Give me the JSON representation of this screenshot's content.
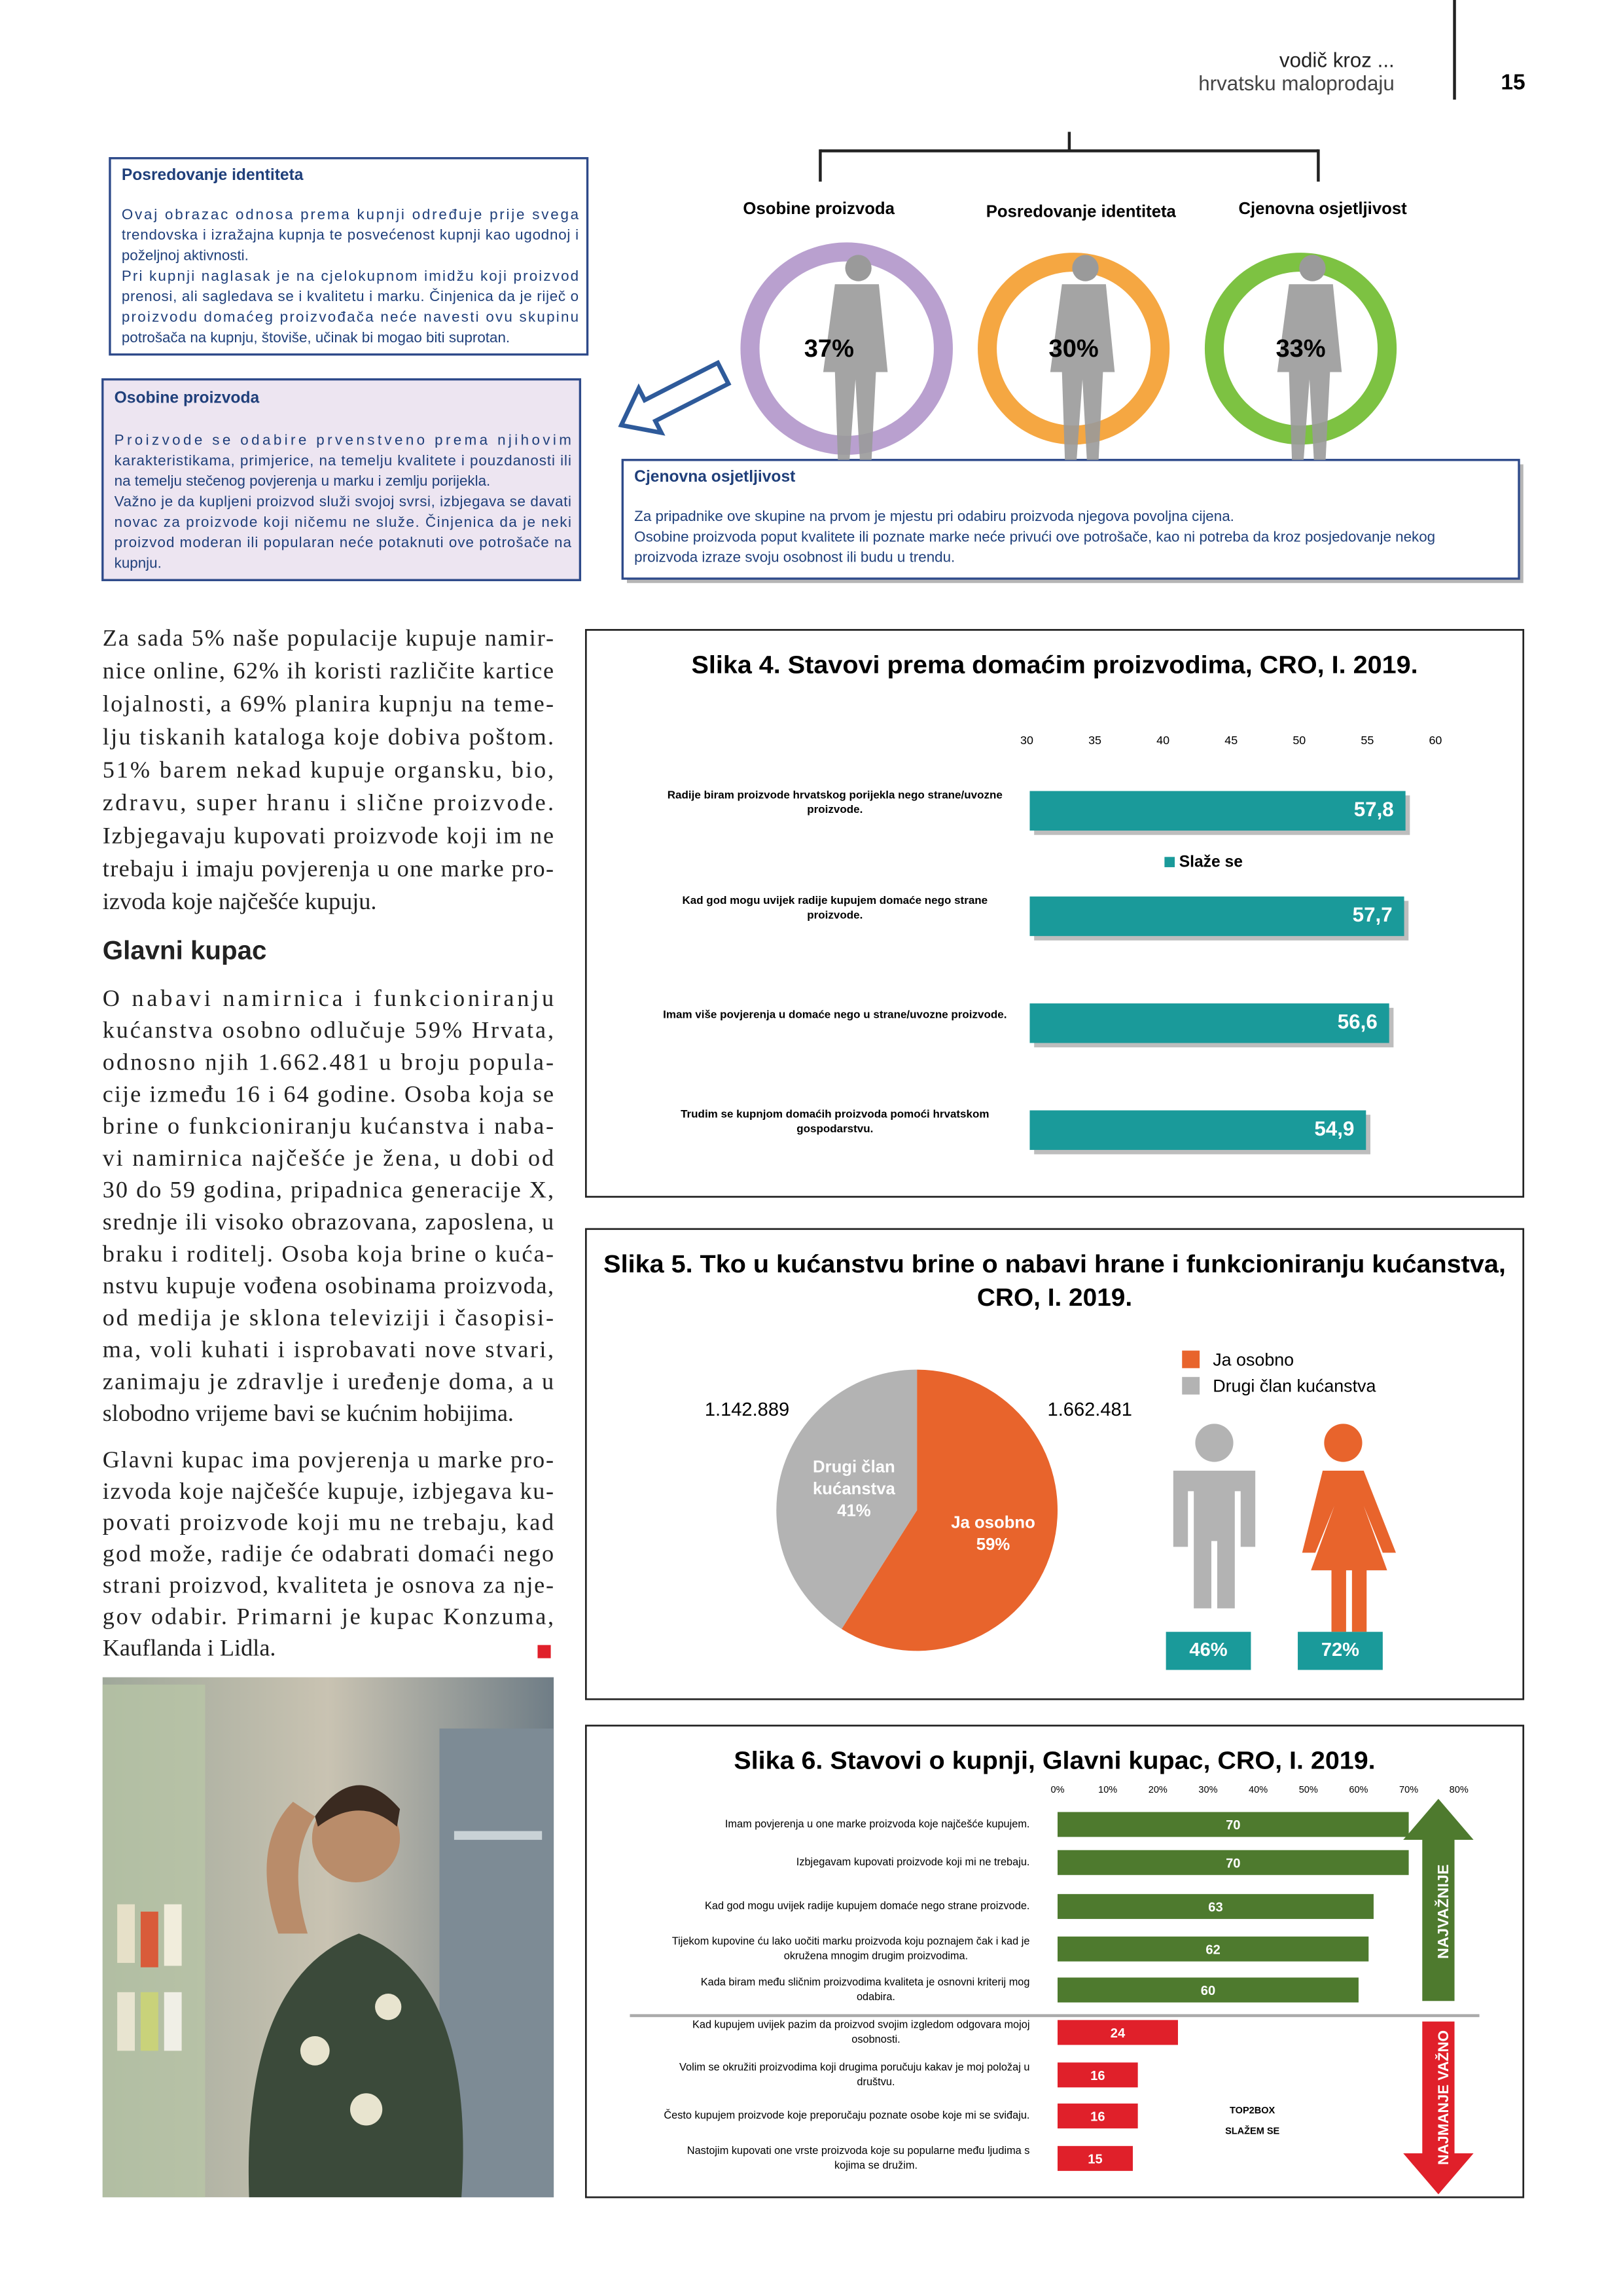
{
  "header": {
    "line1": "vodič kroz ...",
    "line2": "hrvatsku maloprodaju",
    "page": "15"
  },
  "segments": {
    "boxes": [
      {
        "title": "Posredovanje identiteta",
        "paragraphs": [
          [
            "Ovaj obrazac odnosa prema kupnji određuje prije svega",
            "trendovska i izražajna kupnja te posvećenost kupnji kao ugodnoj i",
            "poželjnoj aktivnosti."
          ],
          [
            "Pri kupnji naglasak je na cjelokupnom imidžu koji proizvod",
            "prenosi, ali sagledava se i kvalitetu i marku. Činjenica da je riječ o",
            "proizvodu domaćeg proizvođača neće navesti ovu skupinu",
            "potrošača na kupnju, štoviše, učinak bi mogao biti suprotan."
          ]
        ]
      },
      {
        "title": "Osobine proizvoda",
        "paragraphs": [
          [
            "Proizvode se odabire prvenstveno prema njihovim",
            "karakteristikama, primjerice, na temelju kvalitete i pouzdanosti ili",
            "na temelju stečenog povjerenja u marku i zemlju porijekla."
          ],
          [
            "Važno je da kupljeni proizvod služi svojoj svrsi, izbjegava se davati",
            "novac za proizvode koji ničemu ne služe. Činjenica da je neki",
            "proizvod moderan ili popularan neće potaknuti ove potrošače na",
            "kupnju."
          ]
        ]
      },
      {
        "title": "Cjenovna osjetljivost",
        "paragraphs": [
          [
            "Za pripadnike ove skupine na prvom je mjestu pri odabiru proizvoda njegova povoljna cijena."
          ],
          [
            "Osobine proizvoda poput kvalitete ili poznate marke neće privući ove potrošače, kao ni potreba da kroz posjedovanje nekog",
            "proizvoda izraze svoju osobnost ili budu u trendu."
          ]
        ]
      }
    ],
    "circles": [
      {
        "label": "Osobine proizvoda",
        "value": 37,
        "value_label": "37%",
        "color": "#b9a0cf"
      },
      {
        "label": "Posredovanje identiteta",
        "value": 30,
        "value_label": "30%",
        "color": "#f5a742"
      },
      {
        "label": "Cjenovna osjetljivost",
        "value": 33,
        "value_label": "33%",
        "color": "#7dc242"
      }
    ]
  },
  "article": {
    "blocks": [
      {
        "kind": "p",
        "lines": [
          "Za sada 5% naše populacije kupuje namir-",
          "nice online, 62% ih koristi različite kartice",
          "lojalnosti, a 69% planira kupnju na teme-",
          "lju tiskanih kataloga koje dobiva poštom.",
          "51% barem nekad kupuje organsku, bio,",
          "zdravu, super hranu i slične proizvode.",
          "Izbjegavaju kupovati proizvode koji im ne",
          "trebaju i imaju povjerenja u one marke pro-",
          "izvoda koje najčešće kupuju."
        ]
      },
      {
        "kind": "h",
        "lines": [
          "Glavni kupac"
        ]
      },
      {
        "kind": "p",
        "lines": [
          "O nabavi namirnica i funkcioniranju",
          "kućanstva osobno odlučuje 59% Hrvata,",
          "odnosno njih 1.662.481 u broju popula-",
          "cije između 16 i 64 godine. Osoba koja se",
          "brine o funkcioniranju kućanstva i naba-",
          "vi namirnica najčešće je žena, u dobi od",
          "30 do 59 godina, pripadnica generacije X,",
          "srednje ili visoko obrazovana, zaposlena, u",
          "braku i roditelj. Osoba koja brine o kuća-",
          "nstvu kupuje vođena osobinama proizvoda,",
          "od medija je sklona televiziji i časopisi-",
          "ma, voli kuhati i isprobavati nove stvari,",
          "zanimaju je zdravlje i uređenje doma, a u",
          "slobodno vrijeme bavi se kućnim hobijima."
        ]
      },
      {
        "kind": "p",
        "lines": [
          "Glavni kupac ima povjerenja u marke pro-",
          "izvoda koje najčešće kupuje, izbjegava ku-",
          "povati proizvode koji mu ne trebaju, kad",
          "god može, radije će odabrati domaći nego",
          "strani proizvod, kvaliteta je osnova za nje-",
          "gov odabir. Primarni je kupac Konzuma,",
          "Kauflanda i Lidla."
        ]
      }
    ]
  },
  "figure4": {
    "type": "bar",
    "title": "Slika 4. Stavovi prema domaćim proizvodima, CRO, I. 2019.",
    "categories": [
      [
        "Radije biram proizvode hrvatskog porijekla nego strane/uvozne",
        "proizvode."
      ],
      [
        "Kad god mogu uvijek radije kupujem domaće nego strane",
        "proizvode."
      ],
      [
        "Imam više povjerenja u domaće nego u strane/uvozne proizvode."
      ],
      [
        "Trudim se kupnjom domaćih proizvoda pomoći hrvatskom",
        "gospodarstvu."
      ]
    ],
    "series": [
      {
        "name": "Slaže se",
        "color": "#1a9a9a",
        "values": [
          57.8,
          57.7,
          56.6,
          54.9
        ],
        "value_labels": [
          "57,8",
          "57,7",
          "56,6",
          "54,9"
        ]
      }
    ],
    "xlim": [
      30,
      60
    ],
    "xticks": [
      30,
      35,
      40,
      45,
      50,
      55,
      60
    ]
  },
  "figure5": {
    "type": "pie",
    "title": [
      "Slika 5. Tko u kućanstvu brine o nabavi hrane i funkcioniranju kućanstva,",
      "CRO, I. 2019."
    ],
    "series": [
      {
        "name": "Ja osobno",
        "inside_label": [
          "Ja osobno"
        ],
        "value": 59,
        "value_label": "59%",
        "color": "#e8642c",
        "count": "1.662.481"
      },
      {
        "name": "Drugi član kućanstva",
        "inside_label": [
          "Drugi član",
          "kućanstva"
        ],
        "value": 41,
        "value_label": "41%",
        "color": "#b3b3b3",
        "count": "1.142.889"
      }
    ],
    "figures": [
      {
        "value": 46,
        "label": "46%",
        "color": "#b3b3b3"
      },
      {
        "value": 72,
        "label": "72%",
        "color": "#e8642c"
      }
    ],
    "badge_color": "#1a9a9a"
  },
  "figure6": {
    "type": "bar",
    "title": "Slika 6. Stavovi o kupnji, Glavni kupac, CRO, I. 2019.",
    "categories": [
      [
        "Imam povjerenja u one marke proizvoda koje najčešće kupujem."
      ],
      [
        "Izbjegavam kupovati proizvode koji mi ne trebaju."
      ],
      [
        "Kad god mogu uvijek radije kupujem domaće nego strane proizvode."
      ],
      [
        "Tijekom kupovine ću lako uočiti marku proizvoda koju poznajem čak i kad je",
        "okružena mnogim drugim proizvodima."
      ],
      [
        "Kada biram među sličnim proizvodima kvaliteta je osnovni kriterij mog",
        "odabira."
      ],
      [
        "Kad kupujem uvijek pazim da proizvod svojim izgledom odgovara mojoj",
        "osobnosti."
      ],
      [
        "Volim se okružiti proizvodima koji drugima poručuju kakav je moj položaj u",
        "društvu."
      ],
      [
        "Često kupujem proizvode koje preporučaju poznate osobe koje mi se sviđaju."
      ],
      [
        "Nastojim kupovati one vrste proizvoda koje su popularne među ljudima s",
        "kojima se družim."
      ]
    ],
    "values": [
      70,
      70,
      63,
      62,
      60,
      24,
      16,
      16,
      15
    ],
    "colors": [
      "#4e7a2e",
      "#4e7a2e",
      "#4e7a2e",
      "#4e7a2e",
      "#4e7a2e",
      "#e0202a",
      "#e0202a",
      "#e0202a",
      "#e0202a"
    ],
    "xlim": [
      0,
      80
    ],
    "xticks": [
      {
        "value": 0,
        "label": "0%"
      },
      {
        "value": 10,
        "label": "10%"
      },
      {
        "value": 20,
        "label": "20%"
      },
      {
        "value": 30,
        "label": "30%"
      },
      {
        "value": 40,
        "label": "40%"
      },
      {
        "value": 50,
        "label": "50%"
      },
      {
        "value": 60,
        "label": "60%"
      },
      {
        "value": 70,
        "label": "70%"
      },
      {
        "value": 80,
        "label": "80%"
      }
    ],
    "legend": [
      "TOP2BOX",
      "SLAŽEM SE"
    ],
    "arrows": [
      {
        "label": "NAJVAŽNIJE",
        "color": "#4e7a2e"
      },
      {
        "label": "NAJMANJE VAŽNO",
        "color": "#e0202a"
      }
    ]
  }
}
